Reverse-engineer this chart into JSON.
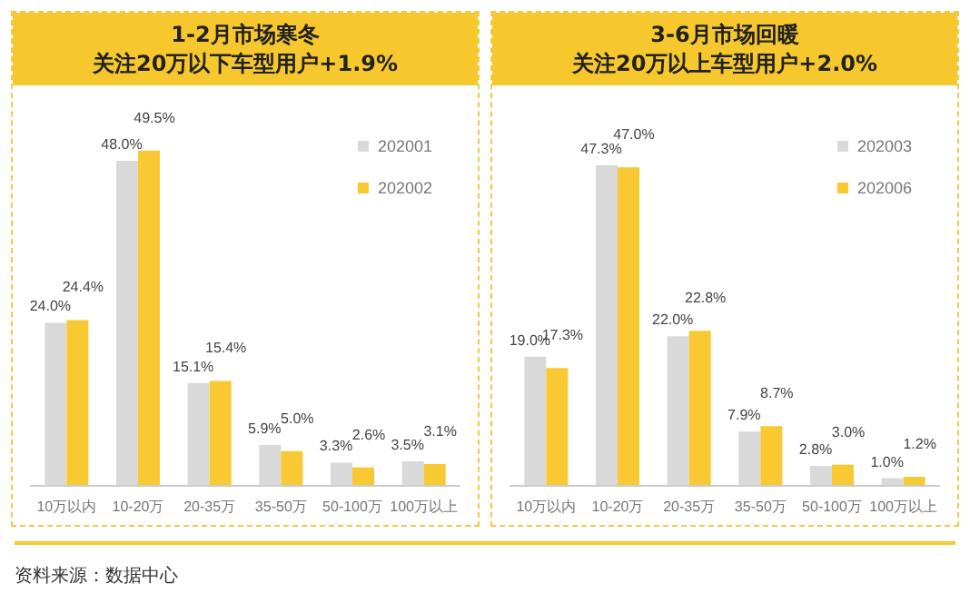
{
  "chart_data": [
    {
      "type": "bar",
      "title": "1-2月市场寒冬",
      "subtitle": "关注20万以下车型用户+1.9%",
      "categories": [
        "10万以内",
        "10-20万",
        "20-35万",
        "35-50万",
        "50-100万",
        "100万以上"
      ],
      "series": [
        {
          "name": "202001",
          "color": "#d9d9d9",
          "values": [
            24.0,
            48.0,
            15.1,
            5.9,
            3.3,
            3.5
          ],
          "value_labels": [
            "24.0%",
            "48.0%",
            "15.1%",
            "5.9%",
            "3.3%",
            "3.5%"
          ]
        },
        {
          "name": "202002",
          "color": "#f9c933",
          "values": [
            24.4,
            49.5,
            15.4,
            5.0,
            2.6,
            3.1
          ],
          "value_labels": [
            "24.4%",
            "49.5%",
            "15.4%",
            "5.0%",
            "2.6%",
            "3.1%"
          ]
        }
      ],
      "legend": "top right",
      "tick_labels": "x",
      "annotations": [
        "资料来源：数据中心"
      ]
    },
    {
      "type": "bar",
      "title": "3-6月市场回暖",
      "subtitle": "关注20万以上车型用户+2.0%",
      "categories": [
        "10万以内",
        "10-20万",
        "20-35万",
        "35-50万",
        "50-100万",
        "100万以上"
      ],
      "series": [
        {
          "name": "202003",
          "color": "#d9d9d9",
          "values": [
            19.0,
            47.3,
            22.0,
            7.9,
            2.8,
            1.0
          ],
          "value_labels": [
            "19.0%",
            "47.3%",
            "22.0%",
            "7.9%",
            "2.8%",
            "1.0%"
          ]
        },
        {
          "name": "202006",
          "color": "#f9c933",
          "values": [
            17.3,
            47.0,
            22.8,
            8.7,
            3.0,
            1.2
          ],
          "value_labels": [
            "17.3%",
            "47.0%",
            "22.8%",
            "8.7%",
            "3.0%",
            "1.2%"
          ]
        }
      ],
      "legend": "top right",
      "tick_labels": "x"
    }
  ]
}
